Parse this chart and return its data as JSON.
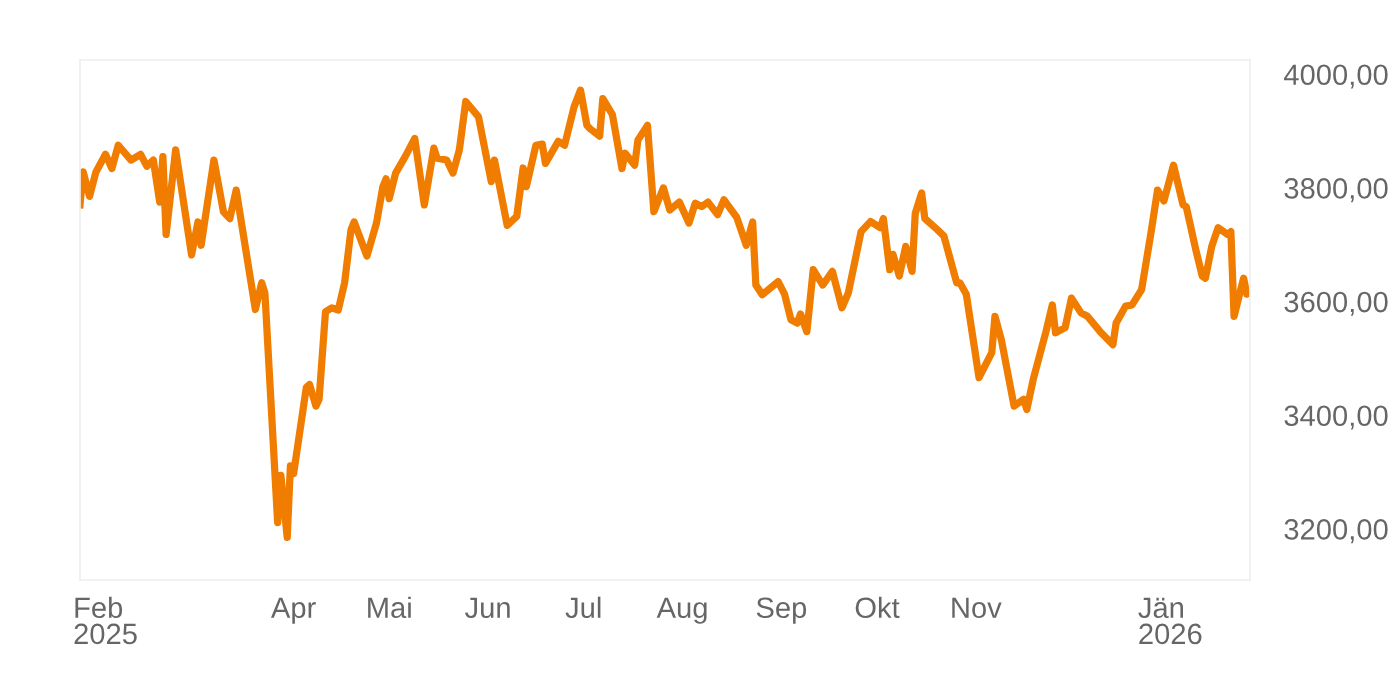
{
  "chart_data": {
    "type": "line",
    "x": [
      "2025-01-24",
      "2025-01-25",
      "2025-01-27",
      "2025-01-29",
      "2025-02-01",
      "2025-02-03",
      "2025-02-05",
      "2025-02-09",
      "2025-02-12",
      "2025-02-14",
      "2025-02-16",
      "2025-02-18",
      "2025-02-19",
      "2025-02-20",
      "2025-02-23",
      "2025-02-28",
      "2025-03-02",
      "2025-03-03",
      "2025-03-07",
      "2025-03-10",
      "2025-03-12",
      "2025-03-14",
      "2025-03-20",
      "2025-03-22",
      "2025-03-23",
      "2025-03-27",
      "2025-03-28",
      "2025-03-30",
      "2025-03-31",
      "2025-04-01",
      "2025-04-05",
      "2025-04-06",
      "2025-04-08",
      "2025-04-09",
      "2025-04-11",
      "2025-04-13",
      "2025-04-15",
      "2025-04-17",
      "2025-04-19",
      "2025-04-20",
      "2025-04-24",
      "2025-04-27",
      "2025-04-29",
      "2025-04-30",
      "2025-05-01",
      "2025-05-03",
      "2025-05-06",
      "2025-05-09",
      "2025-05-12",
      "2025-05-15",
      "2025-05-16",
      "2025-05-19",
      "2025-05-21",
      "2025-05-23",
      "2025-05-25",
      "2025-05-29",
      "2025-06-02",
      "2025-06-03",
      "2025-06-07",
      "2025-06-10",
      "2025-06-12",
      "2025-06-13",
      "2025-06-16",
      "2025-06-18",
      "2025-06-19",
      "2025-06-23",
      "2025-06-25",
      "2025-06-28",
      "2025-06-30",
      "2025-07-02",
      "2025-07-03",
      "2025-07-06",
      "2025-07-07",
      "2025-07-10",
      "2025-07-13",
      "2025-07-14",
      "2025-07-17",
      "2025-07-18",
      "2025-07-21",
      "2025-07-23",
      "2025-07-26",
      "2025-07-28",
      "2025-07-31",
      "2025-08-03",
      "2025-08-05",
      "2025-08-07",
      "2025-08-09",
      "2025-08-12",
      "2025-08-14",
      "2025-08-18",
      "2025-08-21",
      "2025-08-23",
      "2025-08-24",
      "2025-08-26",
      "2025-08-31",
      "2025-09-02",
      "2025-09-04",
      "2025-09-06",
      "2025-09-07",
      "2025-09-09",
      "2025-09-11",
      "2025-09-14",
      "2025-09-17",
      "2025-09-20",
      "2025-09-22",
      "2025-09-26",
      "2025-09-29",
      "2025-10-02",
      "2025-10-03",
      "2025-10-05",
      "2025-10-06",
      "2025-10-08",
      "2025-10-10",
      "2025-10-12",
      "2025-10-13",
      "2025-10-15",
      "2025-10-16",
      "2025-10-20",
      "2025-10-22",
      "2025-10-26",
      "2025-10-27",
      "2025-10-29",
      "2025-11-02",
      "2025-11-06",
      "2025-11-07",
      "2025-11-09",
      "2025-11-13",
      "2025-11-16",
      "2025-11-17",
      "2025-11-19",
      "2025-11-23",
      "2025-11-25",
      "2025-11-26",
      "2025-11-29",
      "2025-12-01",
      "2025-12-04",
      "2025-12-06",
      "2025-12-10",
      "2025-12-14",
      "2025-12-15",
      "2025-12-18",
      "2025-12-20",
      "2025-12-23",
      "2025-12-26",
      "2025-12-28",
      "2025-12-30",
      "2026-01-02",
      "2026-01-05",
      "2026-01-06",
      "2026-01-09",
      "2026-01-11",
      "2026-01-12",
      "2026-01-14",
      "2026-01-16",
      "2026-01-19",
      "2026-01-20",
      "2026-01-21",
      "2026-01-24",
      "2026-01-25",
      "2026-01-26"
    ],
    "series": [
      {
        "color": "#f07c00",
        "values": [
          3770,
          3828,
          3785,
          3828,
          3859,
          3834,
          3875,
          3849,
          3859,
          3838,
          3849,
          3775,
          3855,
          3718,
          3867,
          3682,
          3740,
          3699,
          3849,
          3758,
          3746,
          3796,
          3586,
          3633,
          3615,
          3211,
          3294,
          3185,
          3311,
          3297,
          3449,
          3454,
          3416,
          3428,
          3582,
          3589,
          3585,
          3633,
          3726,
          3740,
          3680,
          3738,
          3802,
          3816,
          3781,
          3826,
          3855,
          3887,
          3770,
          3870,
          3852,
          3849,
          3826,
          3867,
          3952,
          3925,
          3811,
          3849,
          3734,
          3750,
          3835,
          3802,
          3875,
          3877,
          3843,
          3882,
          3875,
          3943,
          3972,
          3910,
          3904,
          3891,
          3957,
          3929,
          3834,
          3861,
          3840,
          3884,
          3910,
          3758,
          3800,
          3761,
          3775,
          3738,
          3773,
          3767,
          3775,
          3753,
          3779,
          3748,
          3699,
          3740,
          3629,
          3612,
          3635,
          3613,
          3568,
          3562,
          3578,
          3547,
          3656,
          3629,
          3653,
          3589,
          3615,
          3723,
          3741,
          3730,
          3746,
          3656,
          3683,
          3645,
          3697,
          3653,
          3755,
          3791,
          3746,
          3726,
          3715,
          3633,
          3633,
          3613,
          3466,
          3510,
          3574,
          3533,
          3416,
          3428,
          3410,
          3463,
          3547,
          3594,
          3545,
          3554,
          3606,
          3580,
          3574,
          3547,
          3524,
          3562,
          3592,
          3594,
          3621,
          3723,
          3796,
          3777,
          3840,
          3770,
          3767,
          3691,
          3645,
          3641,
          3697,
          3730,
          3718,
          3723,
          3574,
          3641,
          3613,
          3615
        ]
      }
    ],
    "xlim": [
      "2025-01-24",
      "2026-01-26"
    ],
    "ylim": [
      3110,
      4025
    ],
    "xticks": [
      {
        "value": "2025-02-01",
        "label": "Feb\n2025"
      },
      {
        "value": "2025-04-01",
        "label": "Apr"
      },
      {
        "value": "2025-05-01",
        "label": "Mai"
      },
      {
        "value": "2025-06-01",
        "label": "Jun"
      },
      {
        "value": "2025-07-01",
        "label": "Jul"
      },
      {
        "value": "2025-08-01",
        "label": "Aug"
      },
      {
        "value": "2025-09-01",
        "label": "Sep"
      },
      {
        "value": "2025-10-01",
        "label": "Okt"
      },
      {
        "value": "2025-11-01",
        "label": "Nov"
      },
      {
        "value": "2026-01-01",
        "label": "Jän\n2026"
      }
    ],
    "yticks": [
      {
        "value": 3200,
        "label": "3200,00"
      },
      {
        "value": 3400,
        "label": "3400,00"
      },
      {
        "value": 3600,
        "label": "3600,00"
      },
      {
        "value": 3800,
        "label": "3800,00"
      },
      {
        "value": 4000,
        "label": "4000,00"
      }
    ],
    "grid": false,
    "marker": "none",
    "line_style": "solid"
  }
}
